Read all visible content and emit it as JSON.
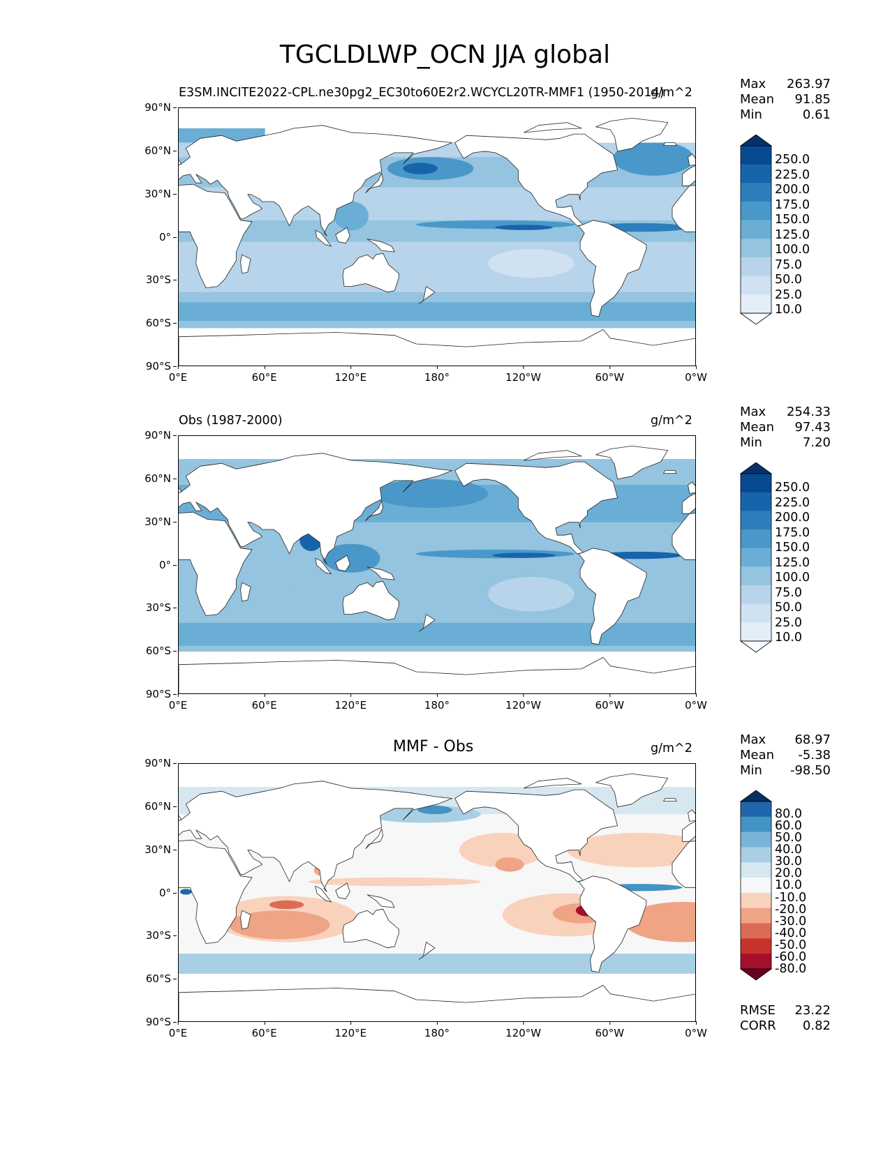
{
  "title": "TGCLDLWP_OCN JJA global",
  "axes": {
    "y_ticks": [
      "90°N",
      "60°N",
      "30°N",
      "0°",
      "30°S",
      "60°S",
      "90°S"
    ],
    "x_ticks": [
      "0°E",
      "60°E",
      "120°E",
      "180°",
      "120°W",
      "60°W",
      "0°W"
    ]
  },
  "colors": {
    "blues": [
      "#f7fbff",
      "#e3eef9",
      "#d0e1f2",
      "#b7d4ea",
      "#94c4df",
      "#6aaed6",
      "#4a98c9",
      "#2e7ebc",
      "#1764ab",
      "#084a91",
      "#08306b"
    ],
    "diverging": [
      "#67001f",
      "#a50f2b",
      "#c6322d",
      "#db6b55",
      "#efa486",
      "#f9d2bc",
      "#f7f7f7",
      "#d6e7f1",
      "#a9cfe5",
      "#7ab5d7",
      "#4393c3",
      "#2166ac",
      "#053061"
    ],
    "land": "#ffffff",
    "coast": "#222222"
  },
  "panels": [
    {
      "id": "model",
      "left_title": "E3SM.INCITE2022-CPL.ne30pg2_EC30to60E2r2.WCYCL20TR-MMF1 (1950-2014)",
      "center_title": "",
      "units": "g/m^2",
      "stats": [
        {
          "label": "Max",
          "value": "263.97"
        },
        {
          "label": "Mean",
          "value": "91.85"
        },
        {
          "label": "Min",
          "value": "0.61"
        }
      ],
      "colorbar": "blues",
      "cbar_labels": [
        "250.0",
        "225.0",
        "200.0",
        "175.0",
        "150.0",
        "125.0",
        "100.0",
        "75.0",
        "50.0",
        "25.0",
        "10.0"
      ]
    },
    {
      "id": "obs",
      "left_title": "Obs (1987-2000)",
      "center_title": "",
      "units": "g/m^2",
      "stats": [
        {
          "label": "Max",
          "value": "254.33"
        },
        {
          "label": "Mean",
          "value": "97.43"
        },
        {
          "label": "Min",
          "value": "7.20"
        }
      ],
      "colorbar": "blues",
      "cbar_labels": [
        "250.0",
        "225.0",
        "200.0",
        "175.0",
        "150.0",
        "125.0",
        "100.0",
        "75.0",
        "50.0",
        "25.0",
        "10.0"
      ]
    },
    {
      "id": "diff",
      "left_title": "",
      "center_title": "MMF - Obs",
      "units": "g/m^2",
      "stats": [
        {
          "label": "Max",
          "value": "68.97"
        },
        {
          "label": "Mean",
          "value": "-5.38"
        },
        {
          "label": "Min",
          "value": "-98.50"
        }
      ],
      "colorbar": "diverging",
      "cbar_labels": [
        "80.0",
        "60.0",
        "50.0",
        "40.0",
        "30.0",
        "20.0",
        "10.0",
        "-10.0",
        "-20.0",
        "-30.0",
        "-40.0",
        "-50.0",
        "-60.0",
        "-80.0"
      ],
      "footer_stats": [
        {
          "label": "RMSE",
          "value": "23.22"
        },
        {
          "label": "CORR",
          "value": "0.82"
        }
      ]
    }
  ],
  "chart_data": [
    {
      "type": "heatmap",
      "title": "E3SM.INCITE2022-CPL.ne30pg2_EC30to60E2r2.WCYCL20TR-MMF1 (1950-2014)",
      "variable": "TGCLDLWP_OCN",
      "season": "JJA",
      "units": "g/m^2",
      "xlim": [
        0,
        360
      ],
      "ylim": [
        -90,
        90
      ],
      "levels": [
        10,
        25,
        50,
        75,
        100,
        125,
        150,
        175,
        200,
        225,
        250
      ],
      "max": 263.97,
      "mean": 91.85,
      "min": 0.61
    },
    {
      "type": "heatmap",
      "title": "Obs (1987-2000)",
      "variable": "TGCLDLWP_OCN",
      "season": "JJA",
      "units": "g/m^2",
      "xlim": [
        0,
        360
      ],
      "ylim": [
        -90,
        90
      ],
      "levels": [
        10,
        25,
        50,
        75,
        100,
        125,
        150,
        175,
        200,
        225,
        250
      ],
      "max": 254.33,
      "mean": 97.43,
      "min": 7.2
    },
    {
      "type": "heatmap",
      "title": "MMF - Obs",
      "variable": "TGCLDLWP_OCN difference",
      "season": "JJA",
      "units": "g/m^2",
      "xlim": [
        0,
        360
      ],
      "ylim": [
        -90,
        90
      ],
      "levels": [
        -80,
        -60,
        -50,
        -40,
        -30,
        -20,
        -10,
        10,
        20,
        30,
        40,
        50,
        60,
        80
      ],
      "max": 68.97,
      "mean": -5.38,
      "min": -98.5,
      "rmse": 23.22,
      "corr": 0.82
    }
  ]
}
